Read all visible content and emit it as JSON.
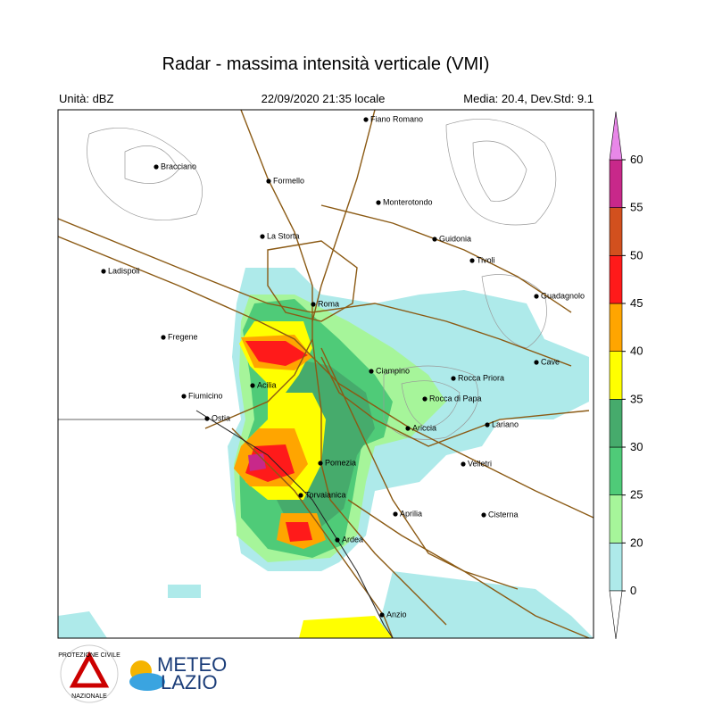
{
  "header": {
    "title": "Radar - massima intensità verticale (VMI)",
    "unit": "Unità: dBZ",
    "datetime": "22/09/2020 21:35 locale",
    "stats": "Media: 20.4, Dev.Std: 9.1"
  },
  "cities": [
    "Fiano Romano",
    "Bracciano",
    "Formello",
    "Monterotondo",
    "La Storta",
    "Guidonia",
    "Tivoli",
    "Ladispoli",
    "Guadagnolo",
    "Roma",
    "Fregene",
    "Cave",
    "Ciampino",
    "Rocca Priora",
    "Acilia",
    "Fiumicino",
    "Rocca di Papa",
    "Ostia",
    "Lariano",
    "Ariccia",
    "Velletri",
    "Pomezia",
    "Torvaianica",
    "Aprilia",
    "Cisterna",
    "Ardea",
    "Anzio"
  ],
  "colorbar": {
    "ticks": [
      0,
      20,
      25,
      30,
      35,
      40,
      45,
      50,
      55,
      60
    ],
    "colors": [
      "#aeeaea",
      "#a6f59a",
      "#4fcb78",
      "#46ab6c",
      "#ffff00",
      "#ffa500",
      "#ff1a1a",
      "#d2501e",
      "#c8288a"
    ],
    "below_color": "#ffffff",
    "above_color": "#e887e8"
  },
  "logos": {
    "protezione_top": "PROTEZIONE CIVILE",
    "protezione_bottom": "NAZIONALE",
    "meteo": "METEO",
    "lazio": "LAZIO"
  }
}
